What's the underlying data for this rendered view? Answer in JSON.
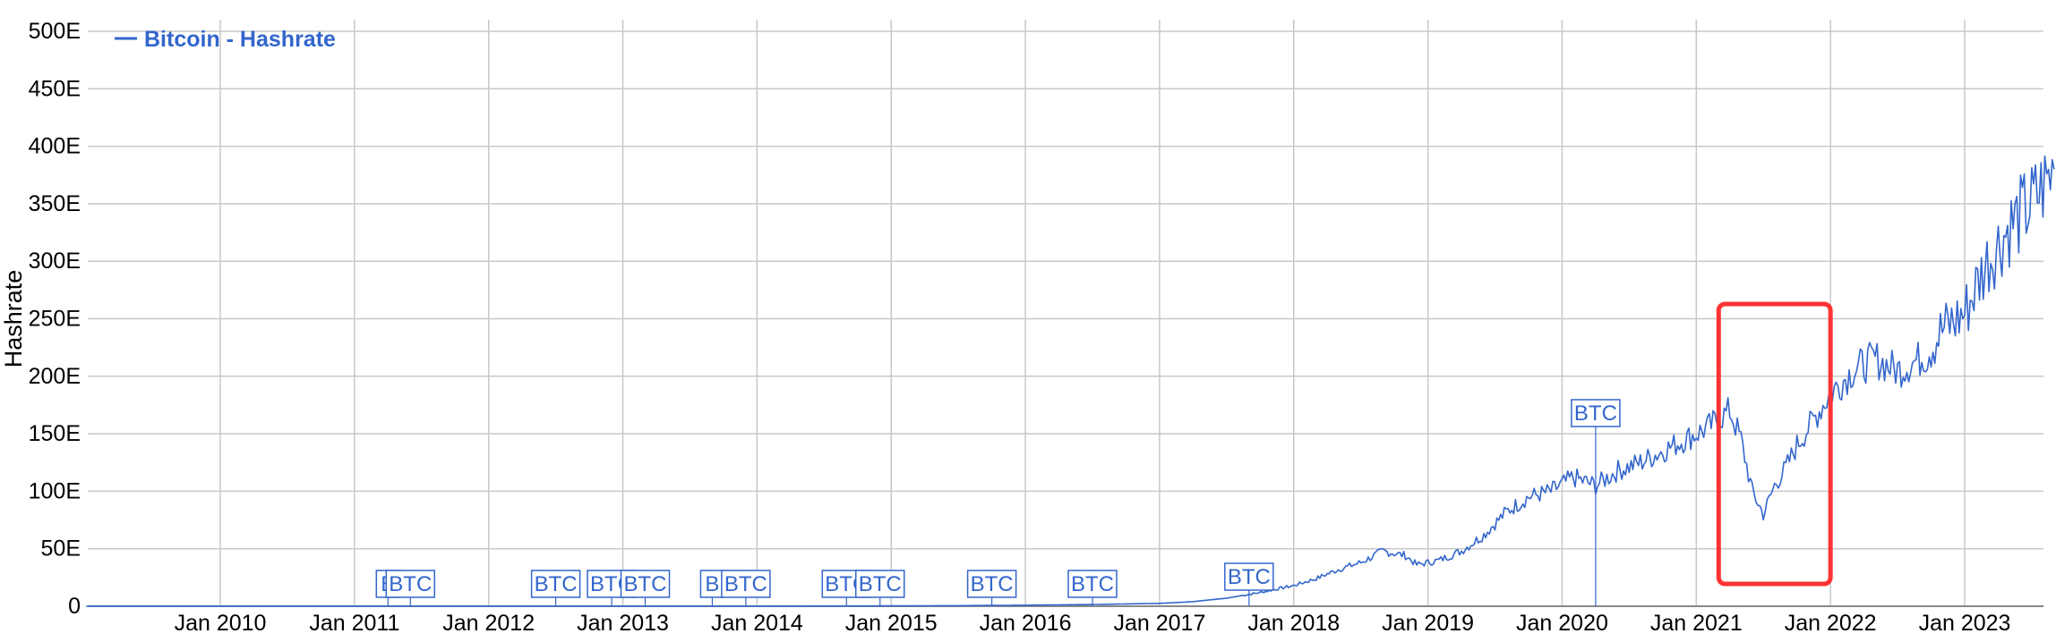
{
  "chart_data": {
    "type": "line",
    "title": "",
    "xlabel": "",
    "ylabel": "Hashrate",
    "legend": {
      "label": "Bitcoin - Hashrate",
      "placement": "top-left"
    },
    "grid": true,
    "ylim": [
      0,
      500
    ],
    "yticks": [
      "0",
      "50E",
      "100E",
      "150E",
      "200E",
      "250E",
      "300E",
      "350E",
      "400E",
      "450E",
      "500E"
    ],
    "xticks": [
      "Jan 2010",
      "Jan 2011",
      "Jan 2012",
      "Jan 2013",
      "Jan 2014",
      "Jan 2015",
      "Jan 2016",
      "Jan 2017",
      "Jan 2018",
      "Jan 2019",
      "Jan 2020",
      "Jan 2021",
      "Jan 2022",
      "Jan 2023"
    ],
    "series": [
      {
        "name": "Bitcoin - Hashrate",
        "color": "#3366cc",
        "x": [
          "2009-01",
          "2010-01",
          "2011-01",
          "2012-01",
          "2013-01",
          "2014-01",
          "2015-01",
          "2015-07",
          "2016-01",
          "2016-07",
          "2017-01",
          "2017-04",
          "2017-07",
          "2017-10",
          "2018-01",
          "2018-03",
          "2018-05",
          "2018-07",
          "2018-09",
          "2018-11",
          "2018-12",
          "2019-02",
          "2019-04",
          "2019-06",
          "2019-08",
          "2019-10",
          "2019-12",
          "2020-02",
          "2020-04",
          "2020-06",
          "2020-08",
          "2020-10",
          "2020-12",
          "2021-02",
          "2021-04",
          "2021-05",
          "2021-06",
          "2021-07",
          "2021-08",
          "2021-09",
          "2021-10",
          "2021-11",
          "2021-12",
          "2022-01",
          "2022-03",
          "2022-05",
          "2022-07",
          "2022-09",
          "2022-11",
          "2023-01",
          "2023-03",
          "2023-05",
          "2023-07",
          "2023-09"
        ],
        "values": [
          0,
          0,
          0,
          0,
          0.02,
          0.01,
          0.3,
          0.5,
          0.9,
          1.5,
          2.5,
          4,
          7,
          12,
          18,
          24,
          32,
          38,
          48,
          44,
          36,
          40,
          48,
          62,
          82,
          95,
          100,
          112,
          105,
          118,
          125,
          135,
          145,
          155,
          170,
          145,
          100,
          80,
          105,
          120,
          140,
          155,
          170,
          185,
          205,
          215,
          205,
          215,
          240,
          255,
          300,
          330,
          350,
          380
        ]
      }
    ],
    "annotations": [
      {
        "label": "B",
        "x": "2011-04"
      },
      {
        "label": "BTC",
        "x": "2011-06"
      },
      {
        "label": "BTC",
        "x": "2012-07"
      },
      {
        "label": "BTC",
        "x": "2012-12"
      },
      {
        "label": "BTC",
        "x": "2013-03"
      },
      {
        "label": "B",
        "x": "2013-09"
      },
      {
        "label": "BTC",
        "x": "2013-12"
      },
      {
        "label": "BTC",
        "x": "2014-09"
      },
      {
        "label": "BTC",
        "x": "2014-12"
      },
      {
        "label": "BTC",
        "x": "2015-10"
      },
      {
        "label": "BTC",
        "x": "2016-07"
      },
      {
        "label": "BTC",
        "x": "2017-09"
      },
      {
        "label": "BTC",
        "x": "2020-04"
      }
    ],
    "highlight": {
      "x_from": "2021-03",
      "x_to": "2022-01",
      "color": "#ff3333"
    }
  }
}
